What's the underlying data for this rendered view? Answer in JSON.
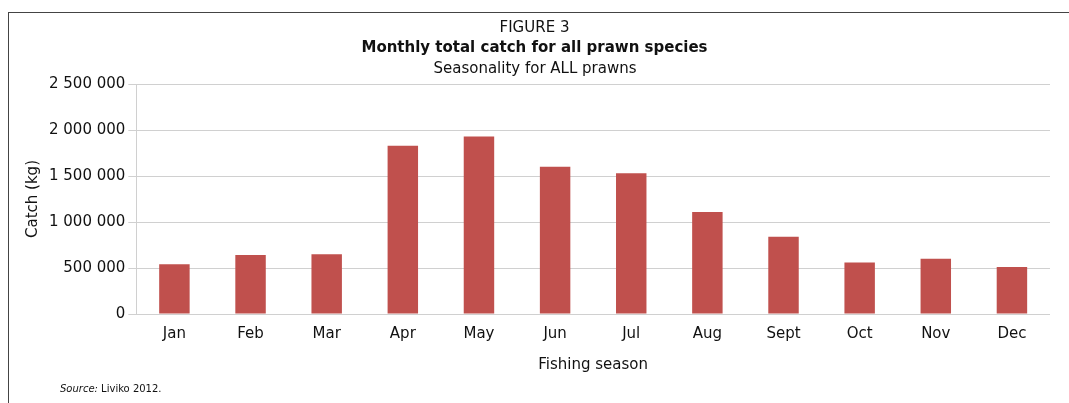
{
  "chart_data": {
    "type": "bar",
    "title": "FIGURE 3",
    "subtitle": "Monthly total catch for all prawn species",
    "annotations": [
      "Seasonality for ALL prawns",
      "Source: Liviko 2012."
    ],
    "xlabel": "Fishing season",
    "ylabel": "Catch (kg)",
    "categories": [
      "Jan",
      "Feb",
      "Mar",
      "Apr",
      "May",
      "Jun",
      "Jul",
      "Aug",
      "Sept",
      "Oct",
      "Nov",
      "Dec"
    ],
    "values": [
      540000,
      640000,
      650000,
      1830000,
      1930000,
      1600000,
      1530000,
      1110000,
      840000,
      560000,
      600000,
      510000
    ],
    "color": "#c0504d",
    "ylim": [
      0,
      2500000
    ],
    "yticks": [
      0,
      500000,
      1000000,
      1500000,
      2000000,
      2500000
    ],
    "grid": "y",
    "legend": false
  }
}
